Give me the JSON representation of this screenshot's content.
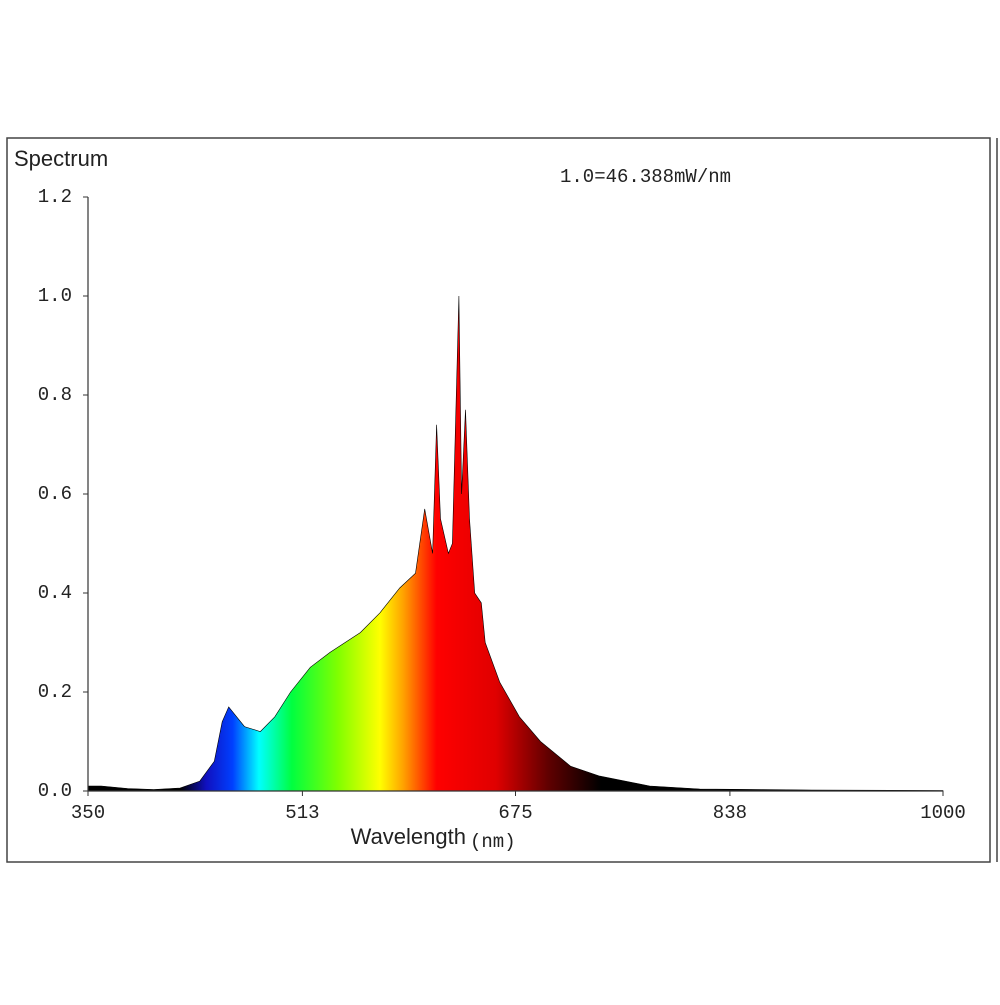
{
  "chart_data": {
    "type": "area",
    "title": "Spectrum",
    "annotation": "1.0=46.388mW/nm",
    "x_label": "Wavelength",
    "x_unit": "(nm)",
    "x": [
      350,
      360,
      380,
      400,
      420,
      435,
      446,
      452,
      457,
      469,
      481,
      492,
      504,
      519,
      534,
      557,
      572,
      587,
      599,
      606,
      612,
      615,
      618,
      624,
      627,
      632,
      634,
      637,
      640,
      644,
      649,
      652,
      663,
      678,
      694,
      717,
      739,
      777,
      815,
      900,
      1000
    ],
    "y": [
      0.01,
      0.01,
      0.005,
      0.003,
      0.006,
      0.02,
      0.06,
      0.14,
      0.17,
      0.13,
      0.12,
      0.15,
      0.2,
      0.25,
      0.28,
      0.32,
      0.36,
      0.41,
      0.44,
      0.57,
      0.48,
      0.74,
      0.55,
      0.48,
      0.5,
      1.0,
      0.6,
      0.77,
      0.55,
      0.4,
      0.38,
      0.3,
      0.22,
      0.15,
      0.1,
      0.05,
      0.03,
      0.01,
      0.004,
      0.002,
      0.001
    ],
    "xlim": [
      350,
      1000
    ],
    "xticks": [
      350,
      513,
      675,
      838,
      1000
    ],
    "ylim": [
      0,
      1.2
    ],
    "yticks": [
      {
        "value": 0,
        "label": "0.0"
      },
      0.2,
      0.4,
      0.6,
      0.8,
      {
        "value": 1,
        "label": "1.0"
      },
      1.2
    ],
    "fill_colors": [
      {
        "x": 420,
        "color": "#000000"
      },
      {
        "x": 440,
        "color": "#1010c0"
      },
      {
        "x": 460,
        "color": "#0040ff"
      },
      {
        "x": 480,
        "color": "#00ffff"
      },
      {
        "x": 505,
        "color": "#00ff40"
      },
      {
        "x": 540,
        "color": "#80ff00"
      },
      {
        "x": 572,
        "color": "#ffff00"
      },
      {
        "x": 590,
        "color": "#ffa000"
      },
      {
        "x": 615,
        "color": "#ff0000"
      },
      {
        "x": 660,
        "color": "#e00000"
      },
      {
        "x": 700,
        "color": "#600000"
      },
      {
        "x": 740,
        "color": "#000000"
      }
    ]
  }
}
